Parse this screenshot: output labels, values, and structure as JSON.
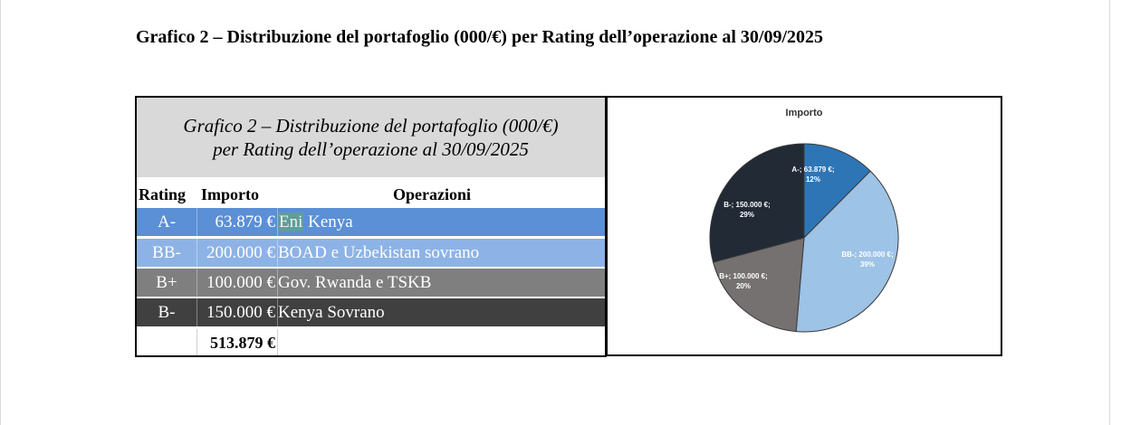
{
  "document": {
    "title": "Grafico 2 – Distribuzione del portafoglio (000/€) per Rating dell’operazione al 30/09/2025"
  },
  "table": {
    "caption_line1": "Grafico 2 – Distribuzione del portafoglio (000/€)",
    "caption_line2": "per Rating dell’operazione al 30/09/2025",
    "headers": {
      "rating": "Rating",
      "importo": "Importo",
      "operazioni": "Operazioni"
    },
    "rows": [
      {
        "rating": "A-",
        "importo": "63.879 €",
        "operazioni_highlight": "Eni",
        "operazioni_rest": " Kenya",
        "color": "#5b8fd6"
      },
      {
        "rating": "BB-",
        "importo": "200.000 €",
        "operazioni": "BOAD e Uzbekistan sovrano",
        "color": "#8db3e6"
      },
      {
        "rating": "B+",
        "importo": "100.000 €",
        "operazioni": "Gov. Rwanda e TSKB",
        "color": "#7f7f7f"
      },
      {
        "rating": "B-",
        "importo": "150.000 €",
        "operazioni": "Kenya Sovrano",
        "color": "#404040"
      }
    ],
    "total": "513.879 €"
  },
  "chart_data": {
    "type": "pie",
    "title": "Importo",
    "slices": [
      {
        "label_line1": "A-; 63.879 €;",
        "label_line2": "12%",
        "value": 63879,
        "color": "#2e75b6"
      },
      {
        "label_line1": "BB-; 200.000 €;",
        "label_line2": "39%",
        "value": 200000,
        "color": "#9dc3e6"
      },
      {
        "label_line1": "B+; 100.000 €;",
        "label_line2": "20%",
        "value": 100000,
        "color": "#767171"
      },
      {
        "label_line1": "B-; 150.000 €;",
        "label_line2": "29%",
        "value": 150000,
        "color": "#222a35"
      }
    ]
  }
}
